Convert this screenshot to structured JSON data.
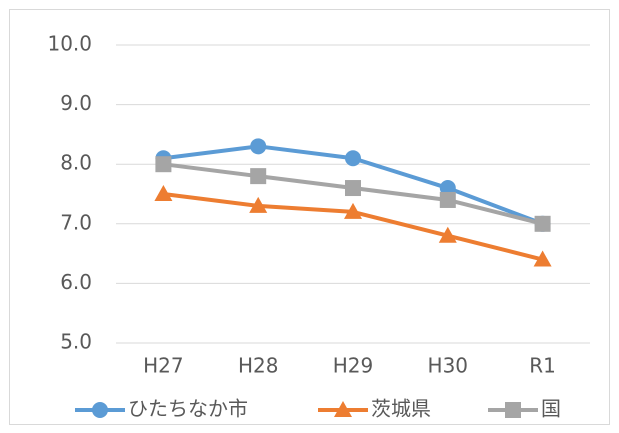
{
  "chart_data": {
    "type": "line",
    "categories": [
      "H27",
      "H28",
      "H29",
      "H30",
      "R1"
    ],
    "series": [
      {
        "name": "ひたちなか市",
        "color": "#5b9bd5",
        "marker": "circle",
        "values": [
          8.1,
          8.3,
          8.1,
          7.6,
          7.0
        ]
      },
      {
        "name": "茨城県",
        "color": "#ed7d31",
        "marker": "triangle",
        "values": [
          7.5,
          7.3,
          7.2,
          6.8,
          6.4
        ]
      },
      {
        "name": "国",
        "color": "#a5a5a5",
        "marker": "square",
        "values": [
          8.0,
          7.8,
          7.6,
          7.4,
          7.0
        ]
      }
    ],
    "ylim": [
      5,
      10
    ],
    "yticks": [
      {
        "value": 5,
        "label": "5.0"
      },
      {
        "value": 6,
        "label": "6.0"
      },
      {
        "value": 7,
        "label": "7.0"
      },
      {
        "value": 8,
        "label": "8.0"
      },
      {
        "value": 9,
        "label": "9.0"
      },
      {
        "value": 10,
        "label": "10.0"
      }
    ],
    "grid": true,
    "legend": "bottom"
  }
}
